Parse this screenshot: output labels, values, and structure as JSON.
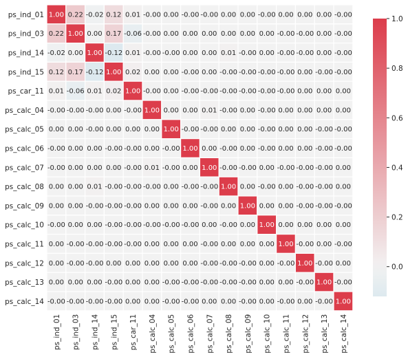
{
  "chart_data": {
    "type": "heatmap",
    "title": "",
    "labels": [
      "ps_ind_01",
      "ps_ind_03",
      "ps_ind_14",
      "ps_ind_15",
      "ps_car_11",
      "ps_calc_04",
      "ps_calc_05",
      "ps_calc_06",
      "ps_calc_07",
      "ps_calc_08",
      "ps_calc_09",
      "ps_calc_10",
      "ps_calc_11",
      "ps_calc_12",
      "ps_calc_13",
      "ps_calc_14"
    ],
    "matrix": [
      [
        "1.00",
        "0.22",
        "-0.02",
        "0.12",
        "0.01",
        "-0.00",
        "0.00",
        "-0.00",
        "-0.00",
        "0.00",
        "0.00",
        "-0.00",
        "0.00",
        "0.00",
        "0.00",
        "-0.00"
      ],
      [
        "0.22",
        "1.00",
        "0.00",
        "0.17",
        "-0.06",
        "-0.00",
        "0.00",
        "0.00",
        "0.00",
        "0.00",
        "0.00",
        "0.00",
        "-0.00",
        "-0.00",
        "0.00",
        "-0.00"
      ],
      [
        "-0.02",
        "0.00",
        "1.00",
        "-0.12",
        "0.01",
        "-0.00",
        "-0.00",
        "0.00",
        "0.00",
        "0.01",
        "-0.00",
        "0.00",
        "-0.00",
        "-0.00",
        "0.00",
        "-0.00"
      ],
      [
        "0.12",
        "0.17",
        "-0.12",
        "1.00",
        "0.02",
        "0.00",
        "0.00",
        "-0.00",
        "0.00",
        "-0.00",
        "-0.00",
        "-0.00",
        "-0.00",
        "0.00",
        "-0.00",
        "-0.00"
      ],
      [
        "0.01",
        "-0.06",
        "0.01",
        "0.02",
        "1.00",
        "-0.00",
        "0.00",
        "-0.00",
        "-0.00",
        "-0.00",
        "-0.00",
        "-0.00",
        "-0.00",
        "0.00",
        "0.00",
        "0.00"
      ],
      [
        "-0.00",
        "-0.00",
        "-0.00",
        "0.00",
        "-0.00",
        "1.00",
        "0.00",
        "0.00",
        "0.01",
        "-0.00",
        "0.00",
        "-0.00",
        "0.00",
        "0.00",
        "0.00",
        "0.00"
      ],
      [
        "0.00",
        "0.00",
        "-0.00",
        "0.00",
        "0.00",
        "0.00",
        "1.00",
        "-0.00",
        "-0.00",
        "0.00",
        "0.00",
        "-0.00",
        "0.00",
        "0.00",
        "-0.00",
        "-0.00"
      ],
      [
        "-0.00",
        "0.00",
        "0.00",
        "-0.00",
        "-0.00",
        "0.00",
        "-0.00",
        "1.00",
        "0.00",
        "-0.00",
        "0.00",
        "-0.00",
        "0.00",
        "0.00",
        "-0.00",
        "-0.00"
      ],
      [
        "-0.00",
        "0.00",
        "0.00",
        "0.00",
        "-0.00",
        "0.01",
        "-0.00",
        "0.00",
        "1.00",
        "-0.00",
        "-0.00",
        "0.00",
        "-0.00",
        "-0.00",
        "-0.00",
        "0.00"
      ],
      [
        "0.00",
        "0.00",
        "0.01",
        "-0.00",
        "-0.00",
        "-0.00",
        "0.00",
        "-0.00",
        "-0.00",
        "1.00",
        "0.00",
        "-0.00",
        "0.00",
        "-0.00",
        "-0.00",
        "0.00"
      ],
      [
        "0.00",
        "0.00",
        "-0.00",
        "-0.00",
        "-0.00",
        "0.00",
        "0.00",
        "0.00",
        "-0.00",
        "0.00",
        "1.00",
        "0.00",
        "0.00",
        "-0.00",
        "-0.00",
        "-0.00"
      ],
      [
        "-0.00",
        "0.00",
        "0.00",
        "-0.00",
        "-0.00",
        "-0.00",
        "-0.00",
        "-0.00",
        "0.00",
        "-0.00",
        "0.00",
        "1.00",
        "0.00",
        "0.00",
        "0.00",
        "0.00"
      ],
      [
        "0.00",
        "-0.00",
        "-0.00",
        "-0.00",
        "-0.00",
        "0.00",
        "0.00",
        "0.00",
        "-0.00",
        "0.00",
        "0.00",
        "0.00",
        "1.00",
        "-0.00",
        "0.00",
        "-0.00"
      ],
      [
        "0.00",
        "-0.00",
        "-0.00",
        "0.00",
        "0.00",
        "0.00",
        "0.00",
        "0.00",
        "-0.00",
        "-0.00",
        "-0.00",
        "0.00",
        "-0.00",
        "1.00",
        "-0.00",
        "0.00"
      ],
      [
        "0.00",
        "0.00",
        "0.00",
        "-0.00",
        "0.00",
        "0.00",
        "-0.00",
        "-0.00",
        "-0.00",
        "-0.00",
        "-0.00",
        "0.00",
        "0.00",
        "-0.00",
        "1.00",
        "-0.00"
      ],
      [
        "-0.00",
        "-0.00",
        "-0.00",
        "-0.00",
        "0.00",
        "0.00",
        "-0.00",
        "-0.00",
        "0.00",
        "0.00",
        "-0.00",
        "0.00",
        "-0.00",
        "0.00",
        "-0.00",
        "1.00"
      ]
    ],
    "colorbar": {
      "min": -0.12,
      "max": 1.0,
      "ticks": [
        "0.0",
        "0.2",
        "0.4",
        "0.6",
        "0.8",
        "1.0"
      ],
      "low_color": "#dde9ef",
      "mid_color": "#f2f2f2",
      "high_color": "#dc3d4b"
    },
    "cell_separator_color": "#ffffff",
    "annotation_dark_text_color": "#262626",
    "annotation_light_text_color": "#ffffff",
    "grid": false,
    "legend": "colorbar-right"
  }
}
